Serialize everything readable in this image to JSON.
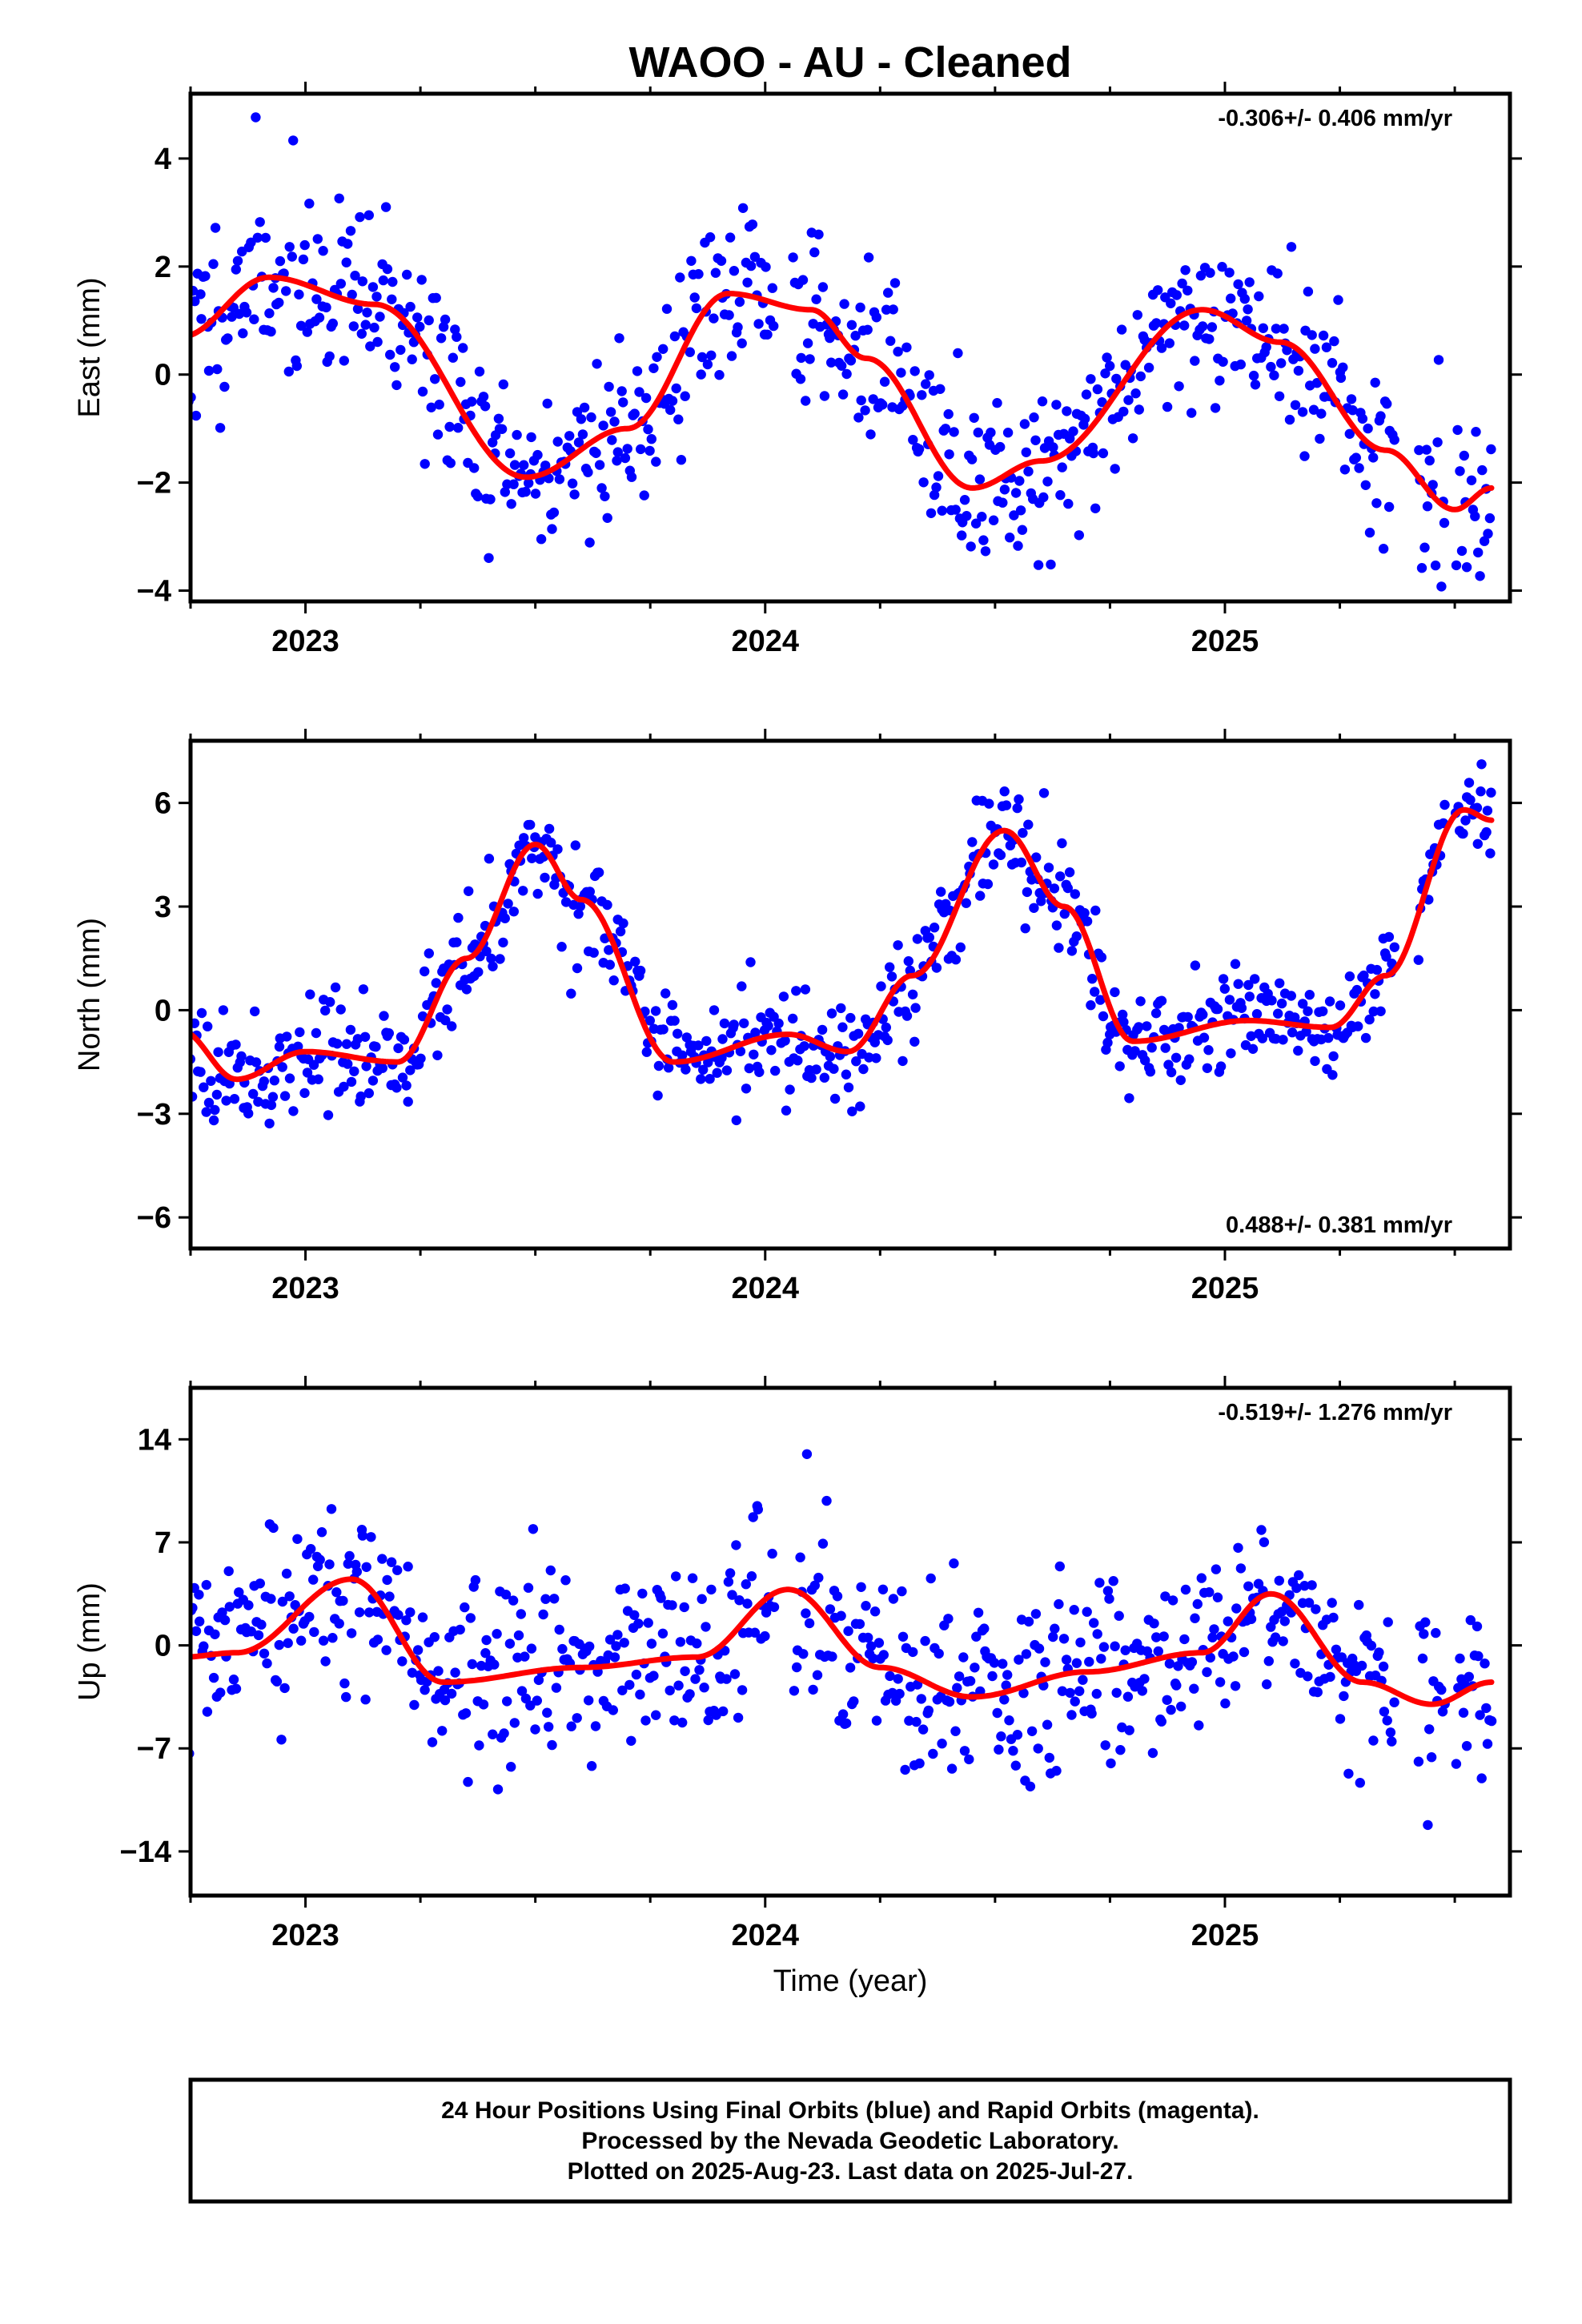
{
  "figure": {
    "title": "WAOO  - AU - Cleaned",
    "xlabel": "Time (year)",
    "x_ticks": [
      2023,
      2024,
      2025
    ],
    "x_tick_labels": [
      "2023",
      "2024",
      "2025"
    ],
    "xlim": [
      2022.75,
      2025.62
    ],
    "point_color": "#0000ff",
    "model_color": "#ff0000"
  },
  "footer": {
    "line1": "24 Hour Positions Using Final Orbits (blue) and Rapid Orbits (magenta).",
    "line2": "Processed by the Nevada Geodetic Laboratory.",
    "line3": "Plotted on 2025-Aug-23. Last data on 2025-Jul-27."
  },
  "chart_data": [
    {
      "type": "scatter",
      "ylabel": "East (mm)",
      "rate": "-0.306+/- 0.406 mm/yr",
      "rate_position": "top-right",
      "ylim": [
        -4.2,
        5.2
      ],
      "y_ticks": [
        -4,
        -2,
        0,
        2,
        4
      ],
      "y_tick_labels": [
        "−4",
        "−2",
        "0",
        "2",
        "4"
      ],
      "data_range": [
        2022.73,
        2025.58
      ],
      "model": {
        "knots_x": [
          2022.73,
          2022.92,
          2023.15,
          2023.48,
          2023.7,
          2023.92,
          2024.1,
          2024.22,
          2024.45,
          2024.6,
          2024.95,
          2025.12,
          2025.35,
          2025.5,
          2025.58
        ],
        "knots_y": [
          0.7,
          1.8,
          1.3,
          -1.9,
          -1.0,
          1.5,
          1.2,
          0.3,
          -2.1,
          -1.6,
          1.2,
          0.6,
          -1.4,
          -2.5,
          -2.1
        ]
      },
      "points": {
        "count": 700,
        "noise_sd": 0.85,
        "seed": 11,
        "gaps": [
          [
            2024.02,
            2024.06
          ],
          [
            2025.37,
            2025.42
          ],
          [
            2025.48,
            2025.5
          ]
        ]
      }
    },
    {
      "type": "scatter",
      "ylabel": "North (mm)",
      "rate": "0.488+/- 0.381 mm/yr",
      "rate_position": "bottom-right",
      "ylim": [
        -6.9,
        7.8
      ],
      "y_ticks": [
        -6,
        -3,
        0,
        3,
        6
      ],
      "y_tick_labels": [
        "−6",
        "−3",
        "0",
        "3",
        "6"
      ],
      "data_range": [
        2022.73,
        2025.58
      ],
      "model": {
        "knots_x": [
          2022.73,
          2022.85,
          2023.0,
          2023.2,
          2023.35,
          2023.5,
          2023.6,
          2023.8,
          2024.05,
          2024.18,
          2024.32,
          2024.52,
          2024.65,
          2024.8,
          2025.05,
          2025.23,
          2025.35,
          2025.52,
          2025.58
        ],
        "knots_y": [
          -0.6,
          -2.0,
          -1.2,
          -1.5,
          1.5,
          4.8,
          3.2,
          -1.5,
          -0.7,
          -1.2,
          1.0,
          5.2,
          3.0,
          -0.9,
          -0.3,
          -0.5,
          1.0,
          5.8,
          5.5
        ]
      },
      "points": {
        "count": 700,
        "noise_sd": 0.8,
        "seed": 23,
        "gaps": [
          [
            2025.37,
            2025.42
          ],
          [
            2025.48,
            2025.5
          ]
        ]
      }
    },
    {
      "type": "scatter",
      "ylabel": "Up (mm)",
      "rate": "-0.519+/- 1.276 mm/yr",
      "rate_position": "top-right",
      "ylim": [
        -17.0,
        17.5
      ],
      "y_ticks": [
        -14,
        -7,
        0,
        7,
        14
      ],
      "y_tick_labels": [
        "−14",
        "−7",
        "0",
        "7",
        "14"
      ],
      "data_range": [
        2022.73,
        2025.58
      ],
      "model": {
        "knots_x": [
          2022.73,
          2022.85,
          2023.1,
          2023.3,
          2023.6,
          2023.85,
          2024.05,
          2024.25,
          2024.45,
          2024.7,
          2024.95,
          2025.1,
          2025.3,
          2025.45,
          2025.58
        ],
        "knots_y": [
          -0.8,
          -0.5,
          4.5,
          -2.5,
          -1.5,
          -0.8,
          3.8,
          -1.5,
          -3.5,
          -1.8,
          -0.5,
          3.5,
          -2.5,
          -4.0,
          -2.5
        ]
      },
      "points": {
        "count": 700,
        "noise_sd": 3.2,
        "seed": 37,
        "gaps": [
          [
            2024.02,
            2024.06
          ],
          [
            2025.37,
            2025.42
          ],
          [
            2025.48,
            2025.5
          ]
        ]
      }
    }
  ]
}
